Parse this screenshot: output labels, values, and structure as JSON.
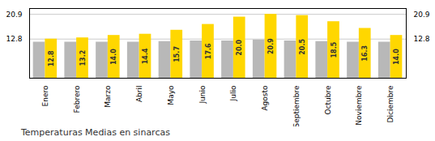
{
  "chart_data": {
    "type": "bar",
    "title": "Temperaturas Medias en sinarcas",
    "categories": [
      "Enero",
      "Febrero",
      "Marzo",
      "Abril",
      "Mayo",
      "Junio",
      "Julio",
      "Agosto",
      "Septiembre",
      "Octubre",
      "Noviembre",
      "Diciembre"
    ],
    "series": [
      {
        "color": "#B8B8B8",
        "values": [
          11.8,
          11.8,
          11.8,
          11.8,
          12.0,
          12.2,
          12.2,
          12.5,
          12.2,
          12.0,
          11.8,
          11.8
        ]
      },
      {
        "color": "#FFD700",
        "values": [
          12.8,
          13.2,
          14.0,
          14.4,
          15.7,
          17.6,
          20.0,
          20.9,
          20.5,
          18.5,
          16.3,
          14.0
        ],
        "data_labels": true,
        "value_labels": [
          "12.8",
          "13.2",
          "14.0",
          "14.4",
          "15.7",
          "17.6",
          "20.0",
          "20.9",
          "20.5",
          "18.5",
          "16.3",
          "14.0"
        ]
      }
    ],
    "ylim": [
      0,
      22.8
    ],
    "yticks": [
      12.8,
      20.9
    ],
    "grid": true
  }
}
